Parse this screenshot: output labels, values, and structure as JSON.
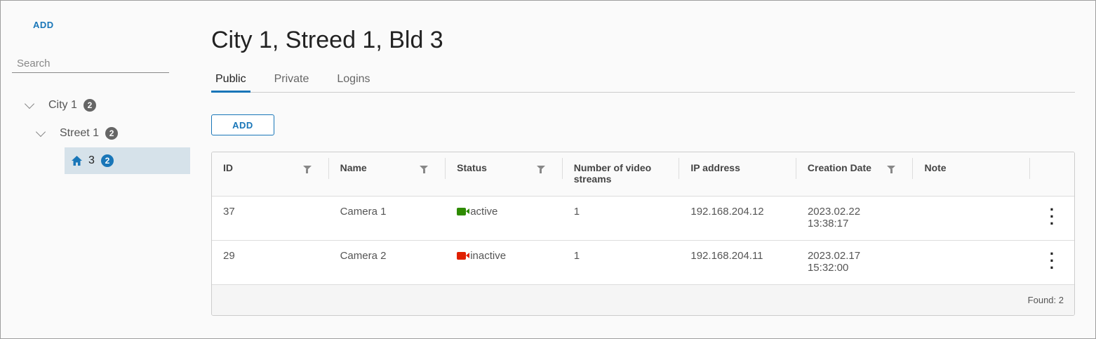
{
  "sidebar": {
    "add_label": "ADD",
    "search_placeholder": "Search",
    "tree": [
      {
        "label": "City 1",
        "count": "2"
      },
      {
        "label": "Street 1",
        "count": "2"
      },
      {
        "label": "3",
        "count": "2"
      }
    ]
  },
  "header": {
    "title": "City 1, Streed 1, Bld 3"
  },
  "tabs": [
    "Public",
    "Private",
    "Logins"
  ],
  "add_label": "ADD",
  "table": {
    "columns": [
      "ID",
      "Name",
      "Status",
      "Number of video streams",
      "IP address",
      "Creation Date",
      "Note"
    ],
    "rows": [
      {
        "id": "37",
        "name": "Camera 1",
        "status": "active",
        "status_color": "#2e8b00",
        "streams": "1",
        "ip": "192.168.204.12",
        "date": "2023.02.22",
        "time": "13:38:17",
        "note": ""
      },
      {
        "id": "29",
        "name": "Camera 2",
        "status": "inactive",
        "status_color": "#e02000",
        "streams": "1",
        "ip": "192.168.204.11",
        "date": "2023.02.17",
        "time": "15:32:00",
        "note": ""
      }
    ],
    "footer": "Found: 2"
  },
  "colors": {
    "accent": "#1976b8"
  }
}
